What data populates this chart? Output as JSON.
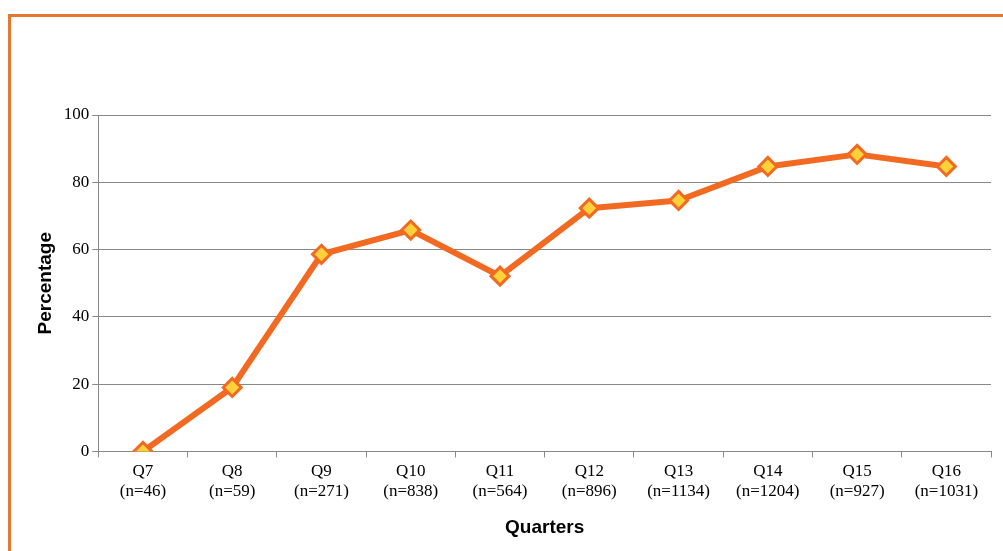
{
  "chart_data": {
    "type": "line",
    "xlabel": "Quarters",
    "ylabel": "Percentage",
    "categories": [
      "Q7\n(n=46)",
      "Q8\n(n=59)",
      "Q9\n(n=271)",
      "Q10\n(n=838)",
      "Q11\n(n=564)",
      "Q12\n(n=896)",
      "Q13\n(n=1134)",
      "Q14\n(n=1204)",
      "Q15\n(n=927)",
      "Q16\n(n=1031)"
    ],
    "series": [
      {
        "color": "#f26a21",
        "values": [
          0,
          19,
          58.6,
          65.8,
          52.1,
          72.3,
          74.6,
          84.7,
          88.3,
          84.7
        ]
      }
    ],
    "ylim": [
      0,
      100
    ],
    "yticks": [
      0,
      20,
      40,
      60,
      80,
      100
    ],
    "grid": "y",
    "legend": false,
    "marker": "diamond",
    "line_style": "solid"
  }
}
